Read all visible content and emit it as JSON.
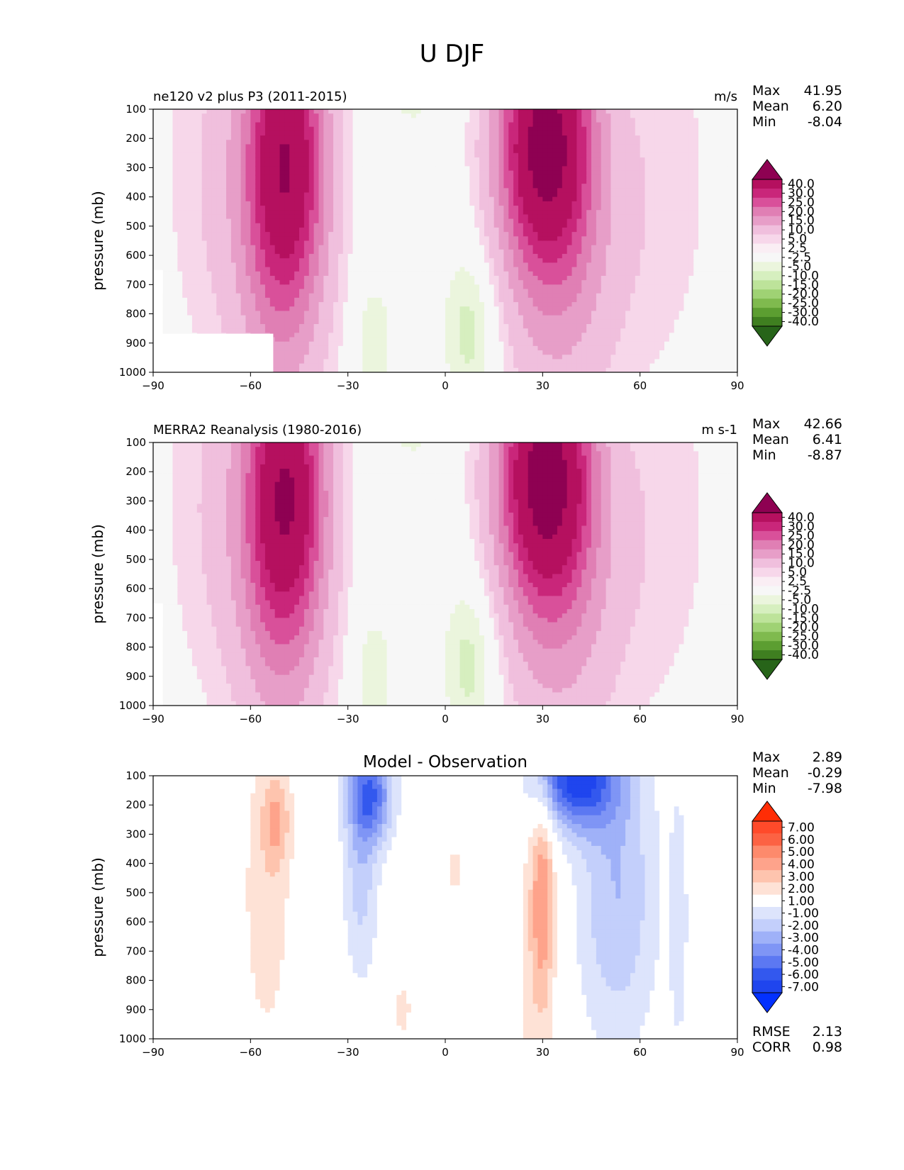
{
  "figure_title": "U DJF",
  "chart_data": [
    {
      "type": "contour",
      "title": "ne120 v2 plus P3 (2011-2015)",
      "units": "m/s",
      "xlabel": "",
      "ylabel": "pressure (mb)",
      "xlim": [
        -90,
        90
      ],
      "ylim": [
        1000,
        100
      ],
      "x_ticks": [
        "−90",
        "−60",
        "−30",
        "0",
        "30",
        "60",
        "90"
      ],
      "y_ticks": [
        "100",
        "200",
        "300",
        "400",
        "500",
        "600",
        "700",
        "800",
        "900",
        "1000"
      ],
      "stats": [
        {
          "label": "Max",
          "value": "41.95"
        },
        {
          "label": "Mean",
          "value": "6.20"
        },
        {
          "label": "Min",
          "value": "-8.04"
        }
      ],
      "colorbar": {
        "labels": [
          "40.0",
          "30.0",
          "25.0",
          "20.0",
          "15.0",
          "10.0",
          "5.0",
          "2.5",
          "-2.5",
          "-5.0",
          "-10.0",
          "-15.0",
          "-20.0",
          "-25.0",
          "-30.0",
          "-40.0"
        ],
        "colors": [
          "#8e0152",
          "#b5105f",
          "#c9267a",
          "#d9509a",
          "#e07fb4",
          "#e79ec8",
          "#f0bfdd",
          "#f7d7ea",
          "#faeef4",
          "#f7f7f7",
          "#ebf5dd",
          "#d6efbf",
          "#bde39a",
          "#9fd274",
          "#7fba4e",
          "#5c9e31",
          "#3f7f20",
          "#276419"
        ]
      },
      "jets": [
        {
          "lat": -49,
          "p": 240,
          "peak": 32
        },
        {
          "lat": 31,
          "p": 200,
          "peak": 42
        }
      ]
    },
    {
      "type": "contour",
      "title": "MERRA2 Reanalysis (1980-2016)",
      "units": "m s-1",
      "xlabel": "",
      "ylabel": "pressure (mb)",
      "xlim": [
        -90,
        90
      ],
      "ylim": [
        1000,
        100
      ],
      "x_ticks": [
        "−90",
        "−60",
        "−30",
        "0",
        "30",
        "60",
        "90"
      ],
      "y_ticks": [
        "100",
        "200",
        "300",
        "400",
        "500",
        "600",
        "700",
        "800",
        "900",
        "1000"
      ],
      "stats": [
        {
          "label": "Max",
          "value": "42.66"
        },
        {
          "label": "Mean",
          "value": "6.41"
        },
        {
          "label": "Min",
          "value": "-8.87"
        }
      ],
      "colorbar": {
        "labels": [
          "40.0",
          "30.0",
          "25.0",
          "20.0",
          "15.0",
          "10.0",
          "5.0",
          "2.5",
          "-2.5",
          "-5.0",
          "-10.0",
          "-15.0",
          "-20.0",
          "-25.0",
          "-30.0",
          "-40.0"
        ],
        "colors": [
          "#8e0152",
          "#b5105f",
          "#c9267a",
          "#d9509a",
          "#e07fb4",
          "#e79ec8",
          "#f0bfdd",
          "#f7d7ea",
          "#faeef4",
          "#f7f7f7",
          "#ebf5dd",
          "#d6efbf",
          "#bde39a",
          "#9fd274",
          "#7fba4e",
          "#5c9e31",
          "#3f7f20",
          "#276419"
        ]
      },
      "jets": [
        {
          "lat": -49,
          "p": 240,
          "peak": 33
        },
        {
          "lat": 31,
          "p": 200,
          "peak": 43
        }
      ]
    },
    {
      "type": "contour",
      "title": "Model - Observation",
      "units": "",
      "xlabel": "",
      "ylabel": "pressure (mb)",
      "xlim": [
        -90,
        90
      ],
      "ylim": [
        1000,
        100
      ],
      "x_ticks": [
        "−90",
        "−60",
        "−30",
        "0",
        "30",
        "60",
        "90"
      ],
      "y_ticks": [
        "100",
        "200",
        "300",
        "400",
        "500",
        "600",
        "700",
        "800",
        "900",
        "1000"
      ],
      "stats": [
        {
          "label": "Max",
          "value": "2.89"
        },
        {
          "label": "Mean",
          "value": "-0.29"
        },
        {
          "label": "Min",
          "value": "-7.98"
        }
      ],
      "metrics": [
        {
          "label": "RMSE",
          "value": "2.13"
        },
        {
          "label": "CORR",
          "value": "0.98"
        }
      ],
      "colorbar": {
        "labels": [
          "7.00",
          "6.00",
          "5.00",
          "4.00",
          "3.00",
          "2.00",
          "1.00",
          "-1.00",
          "-2.00",
          "-3.00",
          "-4.00",
          "-5.00",
          "-6.00",
          "-7.00"
        ],
        "colors": [
          "#ff2d05",
          "#ff4a2a",
          "#fc6243",
          "#fd8a6c",
          "#fea38b",
          "#fec4ae",
          "#fee2d6",
          "#ffffff",
          "#dde4fc",
          "#c3cffb",
          "#9fb1f8",
          "#7f95f5",
          "#5c78f2",
          "#3358ee",
          "#1f45ee",
          "#0331ff"
        ]
      }
    }
  ]
}
